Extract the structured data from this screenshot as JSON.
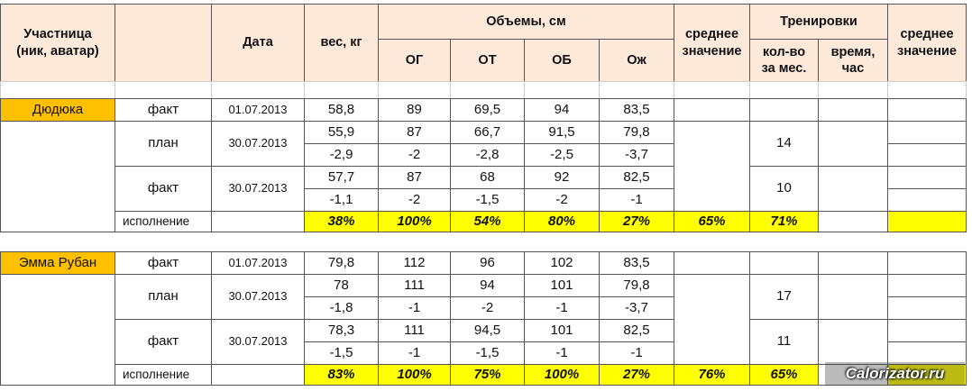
{
  "header": {
    "participant": "Участница\n(ник, аватар)",
    "date": "Дата",
    "weight": "вес, кг",
    "volumes": "Объемы, см",
    "volume_cols": [
      "ОГ",
      "ОТ",
      "ОБ",
      "Ож"
    ],
    "average": "среднее\nзначение",
    "trainings": "Тренировки",
    "training_cols": [
      "кол-во\nза мес.",
      "время,\nчас"
    ],
    "average2": "среднее\nзначение"
  },
  "blocks": [
    {
      "name": "Дюдюка",
      "start": {
        "label": "факт",
        "date": "01.07.2013",
        "values": [
          "58,8",
          "89",
          "69,5",
          "94",
          "83,5"
        ]
      },
      "plan": {
        "label": "план",
        "date": "30.07.2013",
        "values": [
          "55,9",
          "87",
          "66,7",
          "91,5",
          "79,8"
        ],
        "diffs": [
          "-2,9",
          "-2",
          "-2,8",
          "-2,5",
          "-3,7"
        ],
        "count": "14"
      },
      "fact": {
        "label": "факт",
        "date": "30.07.2013",
        "values": [
          "57,7",
          "87",
          "68",
          "92",
          "82,5"
        ],
        "diffs": [
          "-1,1",
          "-2",
          "-1,5",
          "-2",
          "-1"
        ],
        "count": "10"
      },
      "execution": {
        "label": "исполнение",
        "values": [
          "38%",
          "100%",
          "54%",
          "80%",
          "27%"
        ],
        "average": "65%",
        "count": "71%"
      }
    },
    {
      "name": "Эмма Рубан",
      "start": {
        "label": "факт",
        "date": "01.07.2013",
        "values": [
          "79,8",
          "112",
          "96",
          "102",
          "83,5"
        ]
      },
      "plan": {
        "label": "план",
        "date": "30.07.2013",
        "values": [
          "78",
          "111",
          "94",
          "101",
          "79,8"
        ],
        "diffs": [
          "-1,8",
          "-1",
          "-2",
          "-1",
          "-3,7"
        ],
        "count": "17"
      },
      "fact": {
        "label": "факт",
        "date": "30.07.2013",
        "values": [
          "78,3",
          "111",
          "94,5",
          "101",
          "82,5"
        ],
        "diffs": [
          "-1,5",
          "-1",
          "-1,5",
          "-1",
          "-1"
        ],
        "count": "11"
      },
      "execution": {
        "label": "исполнение",
        "values": [
          "83%",
          "100%",
          "75%",
          "100%",
          "27%"
        ],
        "average": "76%",
        "count": "65%"
      }
    }
  ],
  "watermark": "Calorizator.ru"
}
